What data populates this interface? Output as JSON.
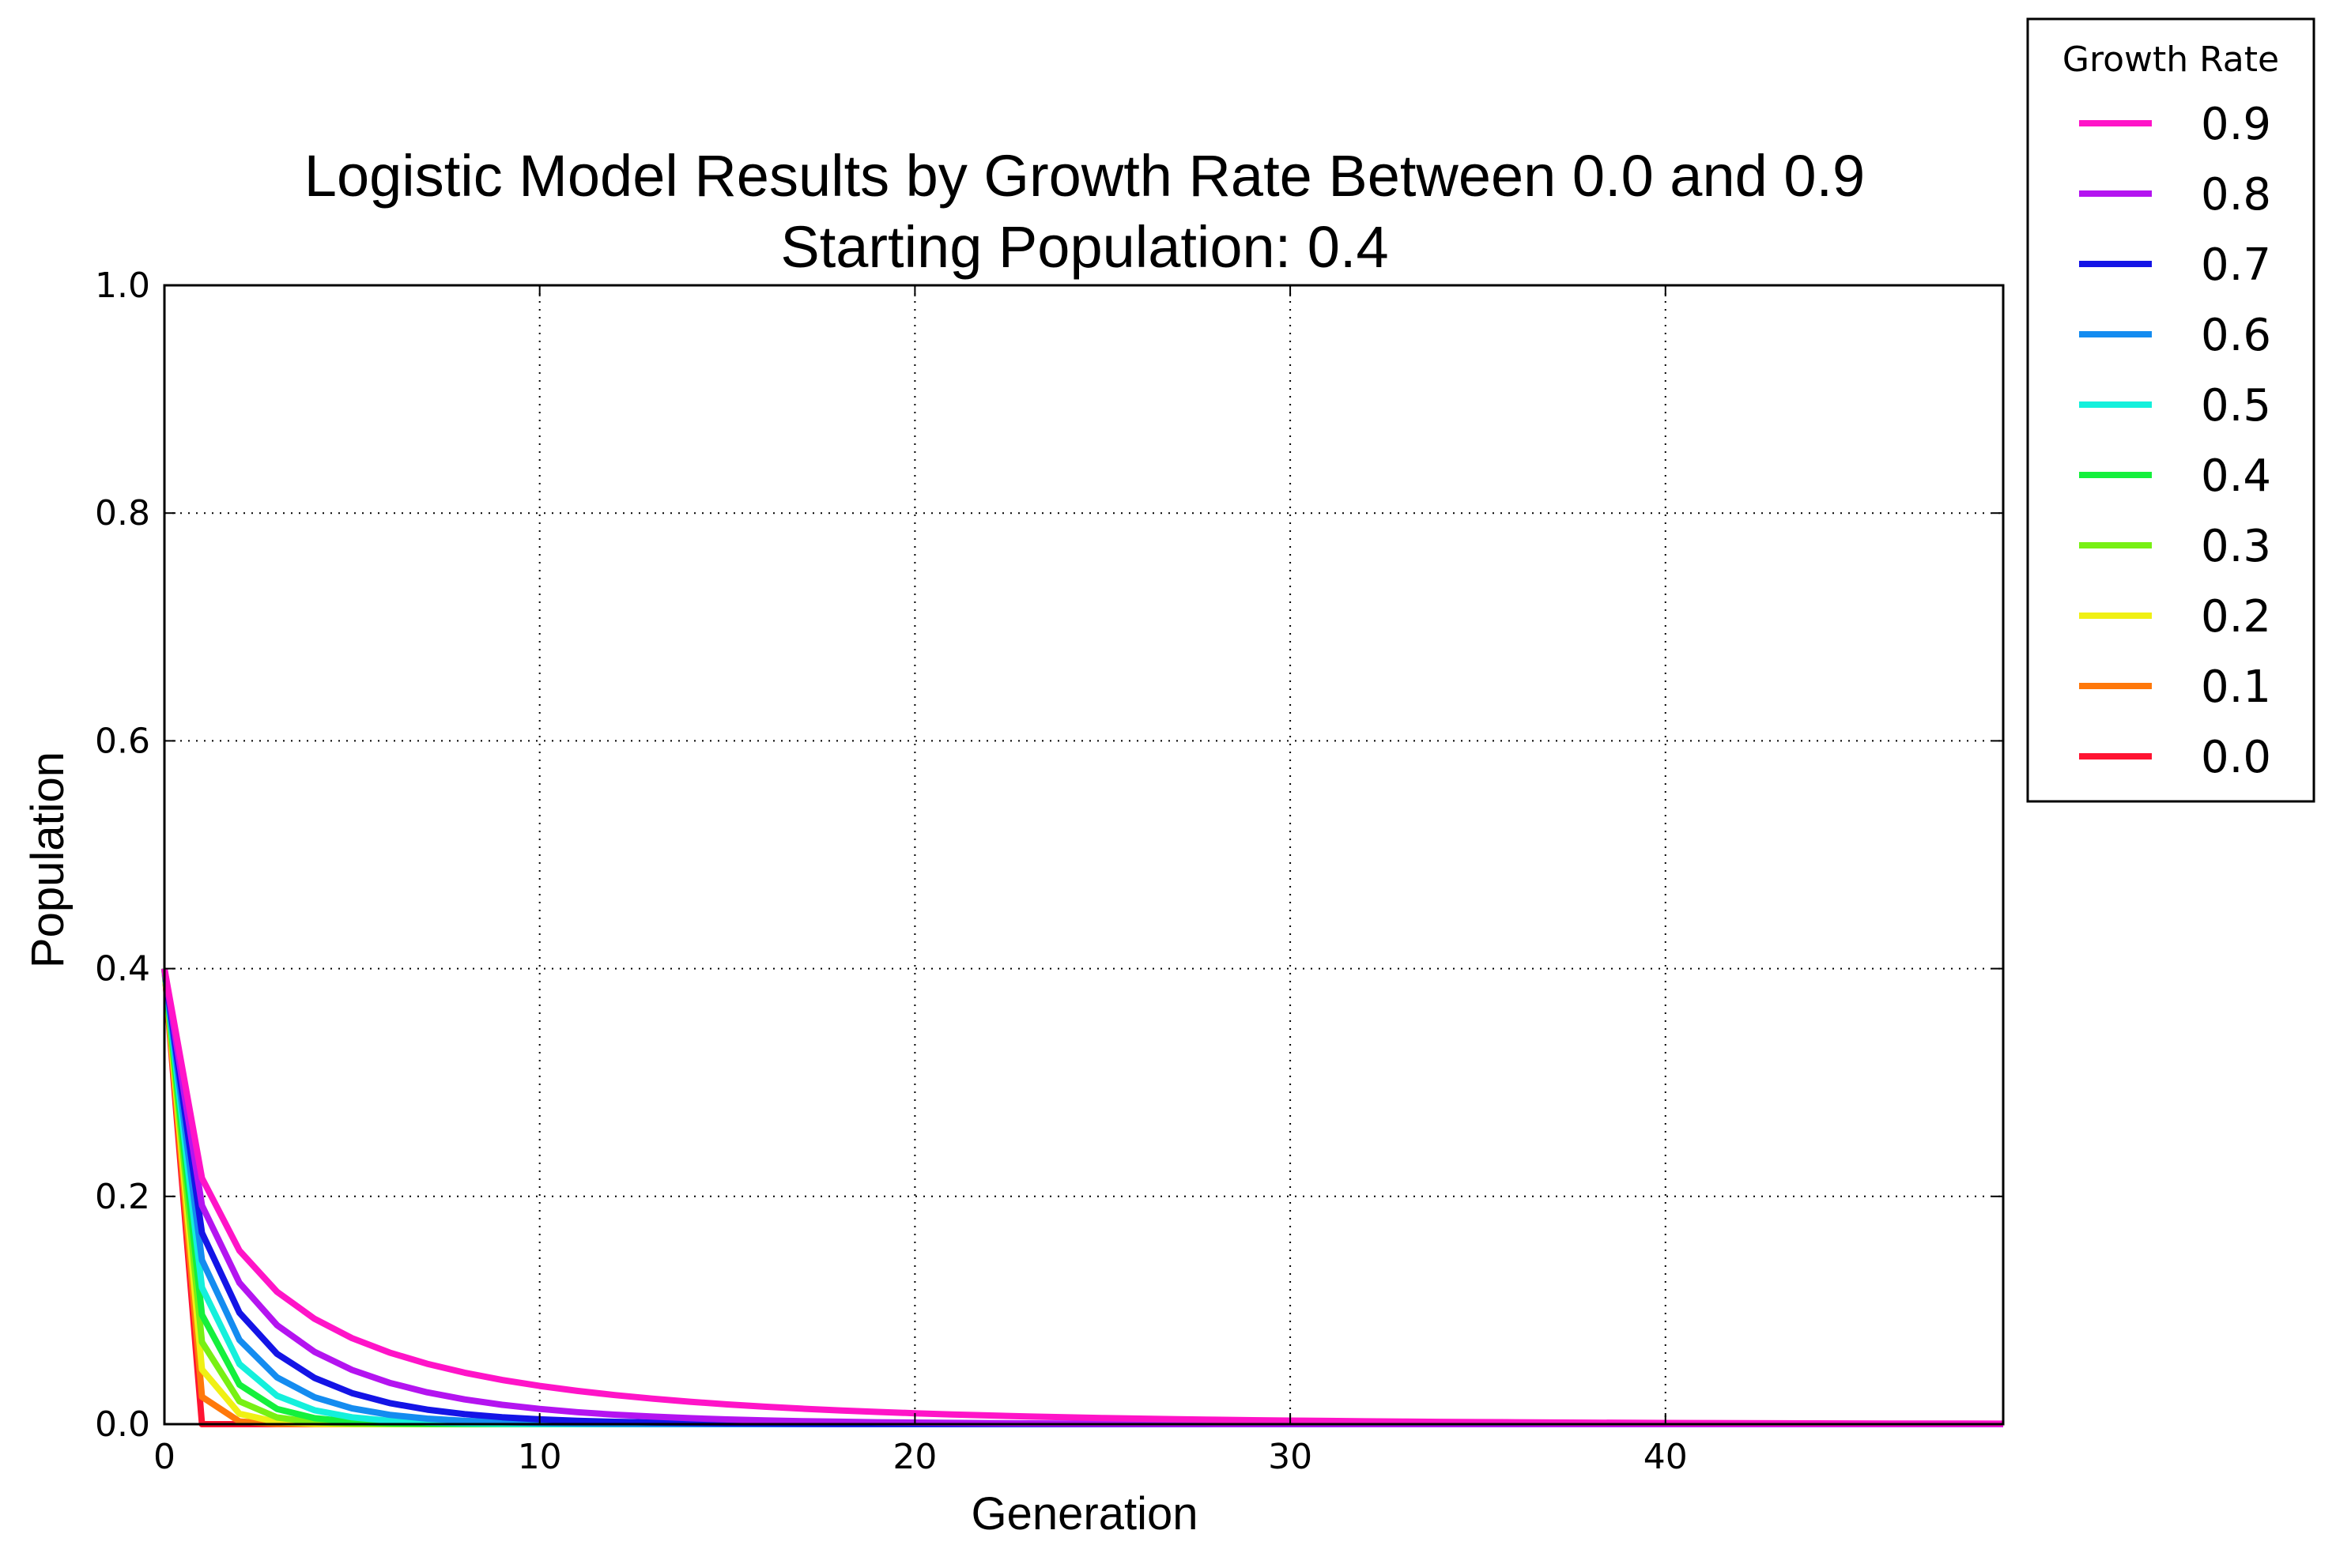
{
  "chart_data": {
    "type": "line",
    "title": "Logistic Model Results by Growth Rate Between 0.0 and 0.9",
    "subtitle": "Starting Population: 0.4",
    "xlabel": "Generation",
    "ylabel": "Population",
    "xlim": [
      0,
      49
    ],
    "ylim": [
      0,
      1.0
    ],
    "xticks": [
      "0",
      "10",
      "20",
      "30",
      "40"
    ],
    "xtick_values": [
      0,
      10,
      20,
      30,
      40
    ],
    "yticks": [
      "0.0",
      "0.2",
      "0.4",
      "0.6",
      "0.8",
      "1.0"
    ],
    "ytick_values": [
      0.0,
      0.2,
      0.4,
      0.6,
      0.8,
      1.0
    ],
    "grid": true,
    "legend": {
      "title": "Growth Rate",
      "placement": "outside-top-right"
    },
    "x": [
      0,
      1,
      2,
      3,
      4,
      5,
      6,
      7,
      8,
      9,
      10,
      11,
      12,
      13,
      14,
      15,
      16,
      17,
      18,
      19,
      20,
      21,
      22,
      23,
      24,
      25,
      26,
      27,
      28,
      29,
      30,
      31,
      32,
      33,
      34,
      35,
      36,
      37,
      38,
      39,
      40,
      41,
      42,
      43,
      44,
      45,
      46,
      47,
      48,
      49
    ],
    "series": [
      {
        "name": "0.9",
        "color": "#ff14c8",
        "r": 0.9
      },
      {
        "name": "0.8",
        "color": "#b414f0",
        "r": 0.8
      },
      {
        "name": "0.7",
        "color": "#1414e6",
        "r": 0.7
      },
      {
        "name": "0.6",
        "color": "#148cf0",
        "r": 0.6
      },
      {
        "name": "0.5",
        "color": "#14f0dc",
        "r": 0.5
      },
      {
        "name": "0.4",
        "color": "#14f03c",
        "r": 0.4
      },
      {
        "name": "0.3",
        "color": "#78f014",
        "r": 0.3
      },
      {
        "name": "0.2",
        "color": "#f0f014",
        "r": 0.2
      },
      {
        "name": "0.1",
        "color": "#ff780a",
        "r": 0.1
      },
      {
        "name": "0.0",
        "color": "#ff1432",
        "r": 0.0
      }
    ],
    "initial_value": 0.4
  }
}
